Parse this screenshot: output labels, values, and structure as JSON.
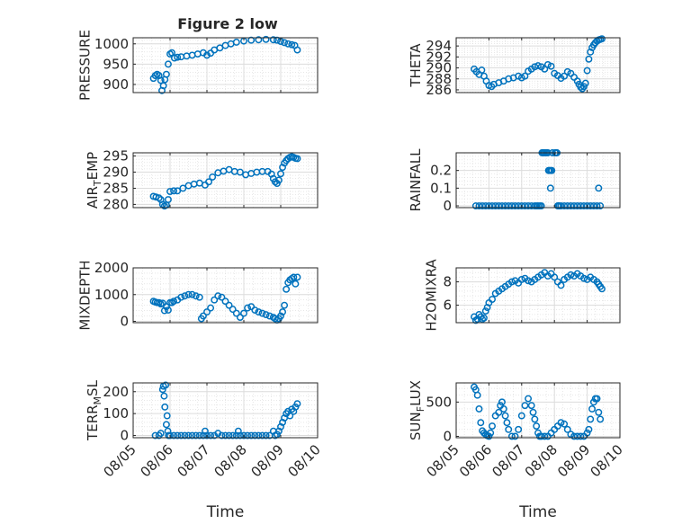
{
  "figure": {
    "title": "Figure 2 low",
    "background": "#ffffff"
  },
  "chart_data": [
    {
      "type": "scatter",
      "ylabel": "PRESSURE",
      "xlabel": "",
      "xlim": [
        "08/05",
        "08/10"
      ],
      "ylim": [
        880,
        1015
      ],
      "yticks": [
        900,
        950,
        1000
      ],
      "yticklabels": [
        "900",
        "950",
        "1000"
      ],
      "xticklabels": [],
      "grid": true,
      "marker_color": "#0072BD",
      "x": [
        5.55,
        5.6,
        5.65,
        5.7,
        5.75,
        5.78,
        5.82,
        5.86,
        5.9,
        5.95,
        6.0,
        6.05,
        6.12,
        6.2,
        6.3,
        6.45,
        6.6,
        6.75,
        6.9,
        7.0,
        7.1,
        7.2,
        7.35,
        7.5,
        7.65,
        7.8,
        8.0,
        8.2,
        8.4,
        8.6,
        8.8,
        8.9,
        9.0,
        9.1,
        9.2,
        9.3,
        9.38,
        9.45
      ],
      "y": [
        915,
        922,
        925,
        922,
        910,
        885,
        897,
        912,
        925,
        950,
        975,
        978,
        965,
        967,
        968,
        970,
        972,
        975,
        978,
        972,
        977,
        985,
        990,
        996,
        1000,
        1004,
        1007,
        1009,
        1010,
        1011,
        1010,
        1009,
        1006,
        1003,
        1000,
        998,
        996,
        985
      ]
    },
    {
      "type": "scatter",
      "ylabel": "THETA",
      "xlabel": "",
      "xlim": [
        "08/05",
        "08/10"
      ],
      "ylim": [
        285.5,
        295.5
      ],
      "yticks": [
        286,
        288,
        290,
        292,
        294
      ],
      "yticklabels": [
        "286",
        "288",
        "290",
        "292",
        "294"
      ],
      "xticklabels": [],
      "grid": true,
      "marker_color": "#0072BD",
      "x": [
        5.55,
        5.62,
        5.7,
        5.78,
        5.85,
        5.92,
        6.0,
        6.08,
        6.15,
        6.3,
        6.45,
        6.6,
        6.75,
        6.9,
        7.0,
        7.1,
        7.2,
        7.3,
        7.4,
        7.5,
        7.6,
        7.7,
        7.8,
        7.9,
        8.0,
        8.1,
        8.2,
        8.3,
        8.4,
        8.5,
        8.6,
        8.7,
        8.75,
        8.8,
        8.85,
        8.9,
        8.95,
        9.0,
        9.05,
        9.1,
        9.15,
        9.2,
        9.25,
        9.3,
        9.35,
        9.4,
        9.45
      ],
      "y": [
        289.8,
        289.3,
        288.8,
        289.6,
        288.5,
        287.6,
        286.8,
        286.6,
        287.0,
        287.3,
        287.6,
        288.0,
        288.2,
        288.5,
        288.2,
        288.5,
        289.4,
        289.8,
        290.2,
        290.4,
        290.2,
        289.8,
        290.6,
        290.3,
        289.0,
        288.6,
        288.1,
        288.5,
        289.3,
        289.0,
        288.3,
        287.6,
        287.0,
        286.5,
        286.2,
        286.6,
        287.2,
        289.5,
        291.6,
        292.9,
        293.7,
        294.2,
        294.6,
        294.9,
        295.1,
        295.2,
        295.3
      ]
    },
    {
      "type": "scatter",
      "ylabel": "AIR_TEMP",
      "xlabel": "",
      "xlim": [
        "08/05",
        "08/10"
      ],
      "ylim": [
        279,
        296
      ],
      "yticks": [
        280,
        285,
        290,
        295
      ],
      "yticklabels": [
        "280",
        "285",
        "290",
        "295"
      ],
      "xticklabels": [],
      "grid": true,
      "marker_color": "#0072BD",
      "x": [
        5.55,
        5.62,
        5.7,
        5.75,
        5.8,
        5.85,
        5.9,
        5.95,
        6.0,
        6.1,
        6.2,
        6.35,
        6.5,
        6.65,
        6.8,
        6.95,
        7.05,
        7.15,
        7.3,
        7.45,
        7.6,
        7.75,
        7.9,
        8.05,
        8.2,
        8.35,
        8.5,
        8.65,
        8.75,
        8.8,
        8.85,
        8.9,
        8.95,
        9.0,
        9.05,
        9.1,
        9.15,
        9.2,
        9.25,
        9.3,
        9.35,
        9.4,
        9.45
      ],
      "y": [
        282.5,
        282.3,
        282.0,
        281.5,
        280.0,
        279.5,
        279.8,
        281.5,
        284.0,
        284.2,
        284.2,
        285.0,
        285.8,
        286.3,
        286.6,
        286.0,
        287.0,
        288.5,
        289.8,
        290.3,
        290.8,
        290.2,
        290.0,
        289.2,
        289.6,
        290.0,
        290.2,
        290.2,
        289.4,
        288.0,
        287.0,
        286.5,
        287.5,
        289.5,
        291.5,
        292.8,
        293.6,
        294.2,
        294.6,
        294.8,
        294.6,
        294.3,
        294.2
      ]
    },
    {
      "type": "scatter",
      "ylabel": "RAINFALL",
      "xlabel": "",
      "xlim": [
        "08/05",
        "08/10"
      ],
      "ylim": [
        -0.01,
        0.3
      ],
      "yticks": [
        0,
        0.1,
        0.2
      ],
      "yticklabels": [
        "0",
        "0.1",
        "0.2"
      ],
      "xticklabels": [],
      "grid": true,
      "marker_color": "#0072BD",
      "x": [
        5.6,
        5.7,
        5.8,
        5.9,
        6.0,
        6.1,
        6.2,
        6.3,
        6.4,
        6.5,
        6.6,
        6.7,
        6.8,
        6.9,
        7.0,
        7.1,
        7.2,
        7.3,
        7.4,
        7.45,
        7.5,
        7.55,
        7.6,
        7.62,
        7.65,
        7.68,
        7.72,
        7.76,
        7.8,
        7.82,
        7.84,
        7.86,
        7.88,
        7.9,
        7.92,
        7.94,
        8.02,
        8.05,
        8.08,
        8.1,
        8.12,
        8.15,
        8.2,
        8.3,
        8.4,
        8.5,
        8.6,
        8.7,
        8.8,
        8.9,
        9.0,
        9.1,
        9.2,
        9.3,
        9.35,
        9.4
      ],
      "y": [
        0,
        0,
        0,
        0,
        0,
        0,
        0,
        0,
        0,
        0,
        0,
        0,
        0,
        0,
        0,
        0,
        0,
        0,
        0,
        0,
        0,
        0,
        0,
        0.3,
        0.3,
        0.3,
        0.3,
        0.3,
        0.3,
        0.2,
        0.2,
        0.2,
        0.1,
        0.2,
        0.2,
        0.3,
        0.3,
        0.3,
        0.3,
        0,
        0,
        0,
        0,
        0,
        0,
        0,
        0,
        0,
        0,
        0,
        0,
        0,
        0,
        0,
        0.1,
        0
      ]
    },
    {
      "type": "scatter",
      "ylabel": "MIXDEPTH",
      "xlabel": "",
      "xlim": [
        "08/05",
        "08/10"
      ],
      "ylim": [
        -50,
        2000
      ],
      "yticks": [
        0,
        1000,
        2000
      ],
      "yticklabels": [
        "0",
        "1000",
        "2000"
      ],
      "xticklabels": [],
      "grid": true,
      "marker_color": "#0072BD",
      "x": [
        5.55,
        5.6,
        5.65,
        5.7,
        5.75,
        5.8,
        5.85,
        5.9,
        5.95,
        6.0,
        6.05,
        6.1,
        6.2,
        6.3,
        6.4,
        6.5,
        6.6,
        6.7,
        6.8,
        6.85,
        6.9,
        7.0,
        7.1,
        7.2,
        7.3,
        7.4,
        7.5,
        7.6,
        7.7,
        7.8,
        7.9,
        8.0,
        8.1,
        8.2,
        8.3,
        8.4,
        8.5,
        8.6,
        8.7,
        8.8,
        8.85,
        8.9,
        8.95,
        9.0,
        9.05,
        9.1,
        9.15,
        9.2,
        9.25,
        9.3,
        9.35,
        9.4,
        9.45
      ],
      "y": [
        750,
        720,
        700,
        700,
        650,
        680,
        400,
        550,
        420,
        700,
        700,
        750,
        800,
        900,
        950,
        1000,
        1000,
        950,
        900,
        100,
        200,
        350,
        500,
        800,
        950,
        900,
        750,
        600,
        450,
        300,
        150,
        300,
        500,
        550,
        420,
        350,
        300,
        250,
        200,
        150,
        100,
        50,
        100,
        200,
        350,
        600,
        1200,
        1450,
        1550,
        1600,
        1650,
        1400,
        1650
      ]
    },
    {
      "type": "scatter",
      "ylabel": "H2OMIXRA",
      "xlabel": "",
      "xlim": [
        "08/05",
        "08/10"
      ],
      "ylim": [
        4.5,
        9.2
      ],
      "yticks": [
        6,
        8
      ],
      "yticklabels": [
        "6",
        "8"
      ],
      "xticklabels": [],
      "grid": true,
      "marker_color": "#0072BD",
      "x": [
        5.55,
        5.6,
        5.65,
        5.7,
        5.75,
        5.8,
        5.85,
        5.9,
        5.95,
        6.0,
        6.1,
        6.2,
        6.3,
        6.4,
        6.5,
        6.6,
        6.7,
        6.8,
        6.9,
        7.0,
        7.1,
        7.2,
        7.3,
        7.4,
        7.5,
        7.6,
        7.7,
        7.8,
        7.9,
        8.0,
        8.1,
        8.2,
        8.3,
        8.4,
        8.5,
        8.6,
        8.7,
        8.8,
        8.9,
        9.0,
        9.1,
        9.2,
        9.3,
        9.35,
        9.4,
        9.45
      ],
      "y": [
        5.0,
        4.7,
        4.8,
        5.2,
        5.0,
        4.8,
        4.9,
        5.5,
        5.8,
        6.2,
        6.5,
        7.0,
        7.2,
        7.4,
        7.6,
        7.8,
        8.0,
        8.1,
        7.9,
        8.2,
        8.3,
        8.1,
        8.0,
        8.2,
        8.4,
        8.6,
        8.8,
        8.5,
        8.7,
        8.4,
        8.0,
        7.7,
        8.2,
        8.4,
        8.6,
        8.5,
        8.7,
        8.5,
        8.3,
        8.2,
        8.4,
        8.2,
        8.0,
        7.8,
        7.6,
        7.4
      ]
    },
    {
      "type": "scatter",
      "ylabel": "TERR_MSL",
      "xlabel": "",
      "xlim": [
        "08/05",
        "08/10"
      ],
      "ylim": [
        -10,
        240
      ],
      "yticks": [
        0,
        100,
        200
      ],
      "yticklabels": [
        "0",
        "100",
        "200"
      ],
      "xticklabels": [],
      "grid": true,
      "marker_color": "#0072BD",
      "x": [
        5.6,
        5.7,
        5.75,
        5.8,
        5.82,
        5.84,
        5.86,
        5.88,
        5.9,
        5.92,
        5.94,
        5.96,
        6.0,
        6.1,
        6.2,
        6.3,
        6.4,
        6.5,
        6.6,
        6.7,
        6.8,
        6.9,
        6.95,
        7.0,
        7.1,
        7.2,
        7.3,
        7.4,
        7.5,
        7.6,
        7.7,
        7.8,
        7.85,
        7.9,
        8.0,
        8.1,
        8.2,
        8.3,
        8.4,
        8.5,
        8.6,
        8.7,
        8.8,
        8.85,
        8.9,
        8.95,
        9.0,
        9.05,
        9.1,
        9.15,
        9.2,
        9.25,
        9.3,
        9.35,
        9.4,
        9.45
      ],
      "y": [
        0,
        0,
        10,
        210,
        225,
        180,
        130,
        230,
        50,
        90,
        20,
        0,
        0,
        0,
        0,
        0,
        0,
        0,
        0,
        0,
        0,
        0,
        20,
        0,
        0,
        0,
        10,
        0,
        0,
        0,
        0,
        0,
        20,
        0,
        0,
        0,
        0,
        0,
        0,
        0,
        0,
        0,
        20,
        0,
        5,
        20,
        40,
        60,
        80,
        100,
        110,
        90,
        120,
        110,
        130,
        145
      ]
    },
    {
      "type": "scatter",
      "ylabel": "SUN_FLUX",
      "xlabel": "",
      "xlim": [
        "08/05",
        "08/10"
      ],
      "ylim": [
        -20,
        780
      ],
      "yticks": [
        0,
        500
      ],
      "yticklabels": [
        "0",
        "500"
      ],
      "xticklabels": [],
      "grid": true,
      "marker_color": "#0072BD",
      "x": [
        5.55,
        5.6,
        5.65,
        5.7,
        5.75,
        5.8,
        5.85,
        5.9,
        5.95,
        6.0,
        6.05,
        6.1,
        6.2,
        6.3,
        6.35,
        6.4,
        6.45,
        6.5,
        6.55,
        6.6,
        6.7,
        6.8,
        6.9,
        7.0,
        7.1,
        7.2,
        7.3,
        7.35,
        7.4,
        7.45,
        7.5,
        7.55,
        7.6,
        7.7,
        7.8,
        7.9,
        8.0,
        8.1,
        8.2,
        8.3,
        8.4,
        8.5,
        8.6,
        8.7,
        8.8,
        8.9,
        9.0,
        9.05,
        9.1,
        9.15,
        9.2,
        9.25,
        9.3,
        9.35,
        9.4
      ],
      "y": [
        720,
        680,
        600,
        400,
        200,
        80,
        50,
        30,
        10,
        0,
        50,
        150,
        300,
        350,
        450,
        500,
        400,
        300,
        200,
        100,
        0,
        0,
        100,
        300,
        450,
        550,
        450,
        350,
        250,
        150,
        50,
        0,
        0,
        0,
        0,
        50,
        100,
        150,
        200,
        180,
        100,
        30,
        0,
        0,
        0,
        0,
        50,
        100,
        250,
        400,
        500,
        550,
        550,
        350,
        250
      ]
    }
  ],
  "shared_axis": {
    "xticklabels": [
      "08/05",
      "08/06",
      "08/07",
      "08/08",
      "08/09",
      "08/10"
    ],
    "xlabel": "Time"
  }
}
